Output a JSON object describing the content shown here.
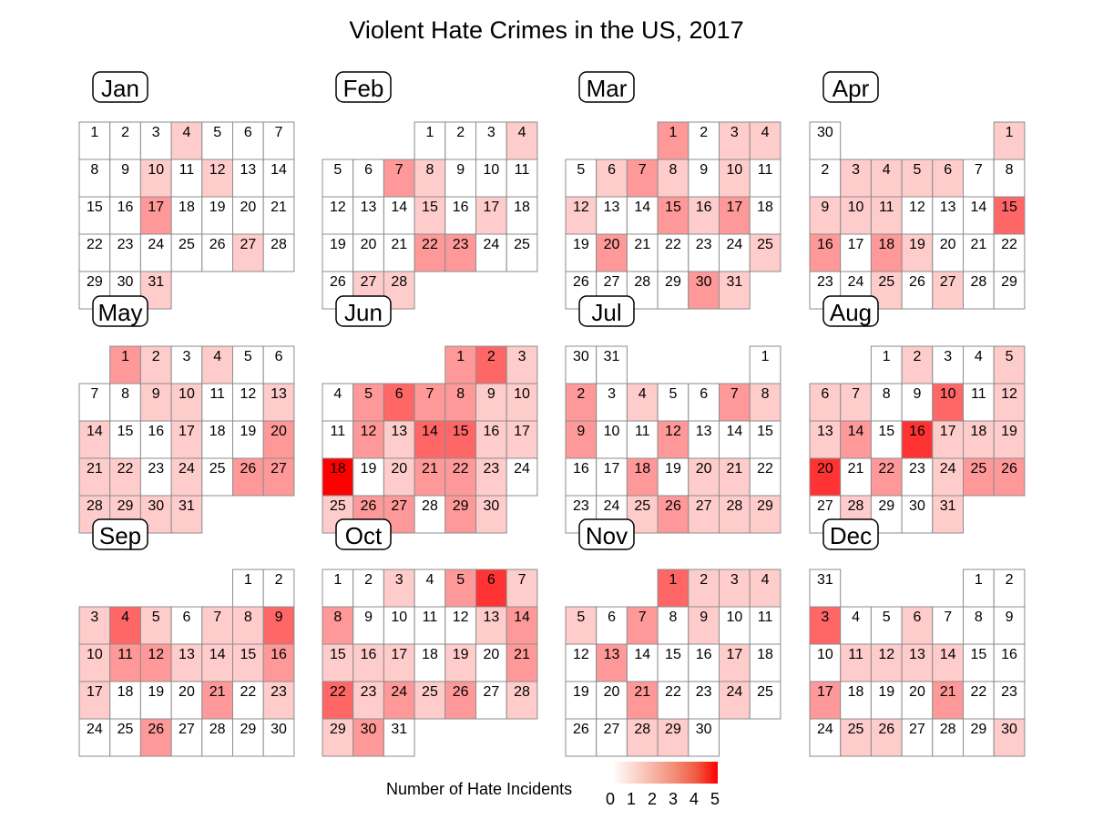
{
  "chart_data": {
    "type": "heatmap",
    "title": "Violent Hate Crimes in the US, 2017",
    "legend": {
      "title": "Number of Hate Incidents",
      "ticks": [
        "0",
        "1",
        "2",
        "3",
        "4",
        "5"
      ],
      "range": [
        0,
        5
      ],
      "low_color": "#ffffff",
      "high_color": "#ff0000"
    },
    "months": [
      {
        "label": "Jan",
        "start_weekday": 0,
        "days": 31,
        "values": [
          0,
          0,
          0,
          1,
          0,
          0,
          0,
          0,
          0,
          1,
          0,
          1,
          0,
          0,
          0,
          0,
          2,
          0,
          0,
          0,
          0,
          0,
          0,
          0,
          0,
          0,
          1,
          0,
          0,
          0,
          1
        ]
      },
      {
        "label": "Feb",
        "start_weekday": 3,
        "days": 28,
        "values": [
          0,
          0,
          0,
          1,
          0,
          0,
          2,
          1,
          0,
          0,
          0,
          0,
          0,
          0,
          1,
          0,
          1,
          0,
          0,
          0,
          0,
          2,
          2,
          0,
          0,
          0,
          1,
          1
        ]
      },
      {
        "label": "Mar",
        "start_weekday": 3,
        "days": 31,
        "values": [
          2,
          0,
          1,
          1,
          0,
          1,
          2,
          1,
          0,
          1,
          0,
          1,
          0,
          0,
          2,
          1,
          2,
          0,
          0,
          2,
          0,
          0,
          0,
          0,
          1,
          0,
          0,
          0,
          0,
          2,
          1
        ]
      },
      {
        "label": "Apr",
        "start_weekday": 6,
        "days": 30,
        "values": [
          1,
          0,
          1,
          1,
          1,
          1,
          0,
          0,
          1,
          1,
          1,
          0,
          0,
          0,
          3,
          2,
          0,
          2,
          1,
          0,
          0,
          0,
          0,
          0,
          1,
          0,
          1,
          0,
          0,
          0
        ]
      },
      {
        "label": "May",
        "start_weekday": 1,
        "days": 31,
        "values": [
          2,
          1,
          0,
          1,
          0,
          0,
          0,
          0,
          1,
          1,
          0,
          0,
          1,
          1,
          0,
          0,
          1,
          0,
          0,
          2,
          1,
          1,
          0,
          1,
          0,
          2,
          2,
          1,
          1,
          1,
          1
        ]
      },
      {
        "label": "Jun",
        "start_weekday": 4,
        "days": 30,
        "values": [
          2,
          3,
          1,
          0,
          2,
          3,
          2,
          2,
          1,
          1,
          0,
          2,
          1,
          3,
          3,
          1,
          1,
          5,
          0,
          1,
          2,
          2,
          1,
          0,
          1,
          2,
          2,
          0,
          2,
          1
        ]
      },
      {
        "label": "Jul",
        "start_weekday": 6,
        "days": 31,
        "values": [
          0,
          2,
          0,
          1,
          0,
          0,
          2,
          1,
          2,
          0,
          0,
          2,
          0,
          0,
          0,
          0,
          0,
          2,
          0,
          1,
          1,
          0,
          0,
          0,
          1,
          2,
          1,
          1,
          1,
          0,
          0
        ]
      },
      {
        "label": "Aug",
        "start_weekday": 2,
        "days": 31,
        "values": [
          0,
          1,
          0,
          0,
          1,
          1,
          1,
          0,
          0,
          3,
          0,
          1,
          1,
          2,
          0,
          4,
          1,
          1,
          1,
          4,
          0,
          2,
          0,
          1,
          2,
          2,
          0,
          1,
          0,
          0,
          1
        ]
      },
      {
        "label": "Sep",
        "start_weekday": 5,
        "days": 30,
        "values": [
          0,
          0,
          1,
          3,
          1,
          0,
          1,
          1,
          3,
          1,
          2,
          2,
          1,
          1,
          1,
          2,
          1,
          0,
          0,
          0,
          2,
          0,
          1,
          0,
          0,
          2,
          0,
          0,
          0,
          0
        ]
      },
      {
        "label": "Oct",
        "start_weekday": 0,
        "days": 31,
        "values": [
          0,
          0,
          1,
          0,
          2,
          4,
          1,
          2,
          0,
          0,
          0,
          0,
          1,
          2,
          1,
          1,
          1,
          0,
          1,
          0,
          2,
          3,
          1,
          2,
          1,
          2,
          0,
          1,
          1,
          2,
          0
        ]
      },
      {
        "label": "Nov",
        "start_weekday": 3,
        "days": 30,
        "values": [
          3,
          1,
          1,
          1,
          1,
          0,
          2,
          0,
          1,
          0,
          0,
          0,
          2,
          0,
          0,
          0,
          1,
          0,
          0,
          0,
          2,
          0,
          0,
          1,
          0,
          0,
          0,
          1,
          1,
          0
        ]
      },
      {
        "label": "Dec",
        "start_weekday": 5,
        "days": 31,
        "values": [
          0,
          0,
          3,
          0,
          0,
          1,
          0,
          0,
          0,
          0,
          1,
          1,
          1,
          1,
          0,
          0,
          2,
          0,
          0,
          0,
          2,
          0,
          0,
          0,
          1,
          1,
          0,
          0,
          0,
          1,
          0
        ]
      }
    ]
  }
}
